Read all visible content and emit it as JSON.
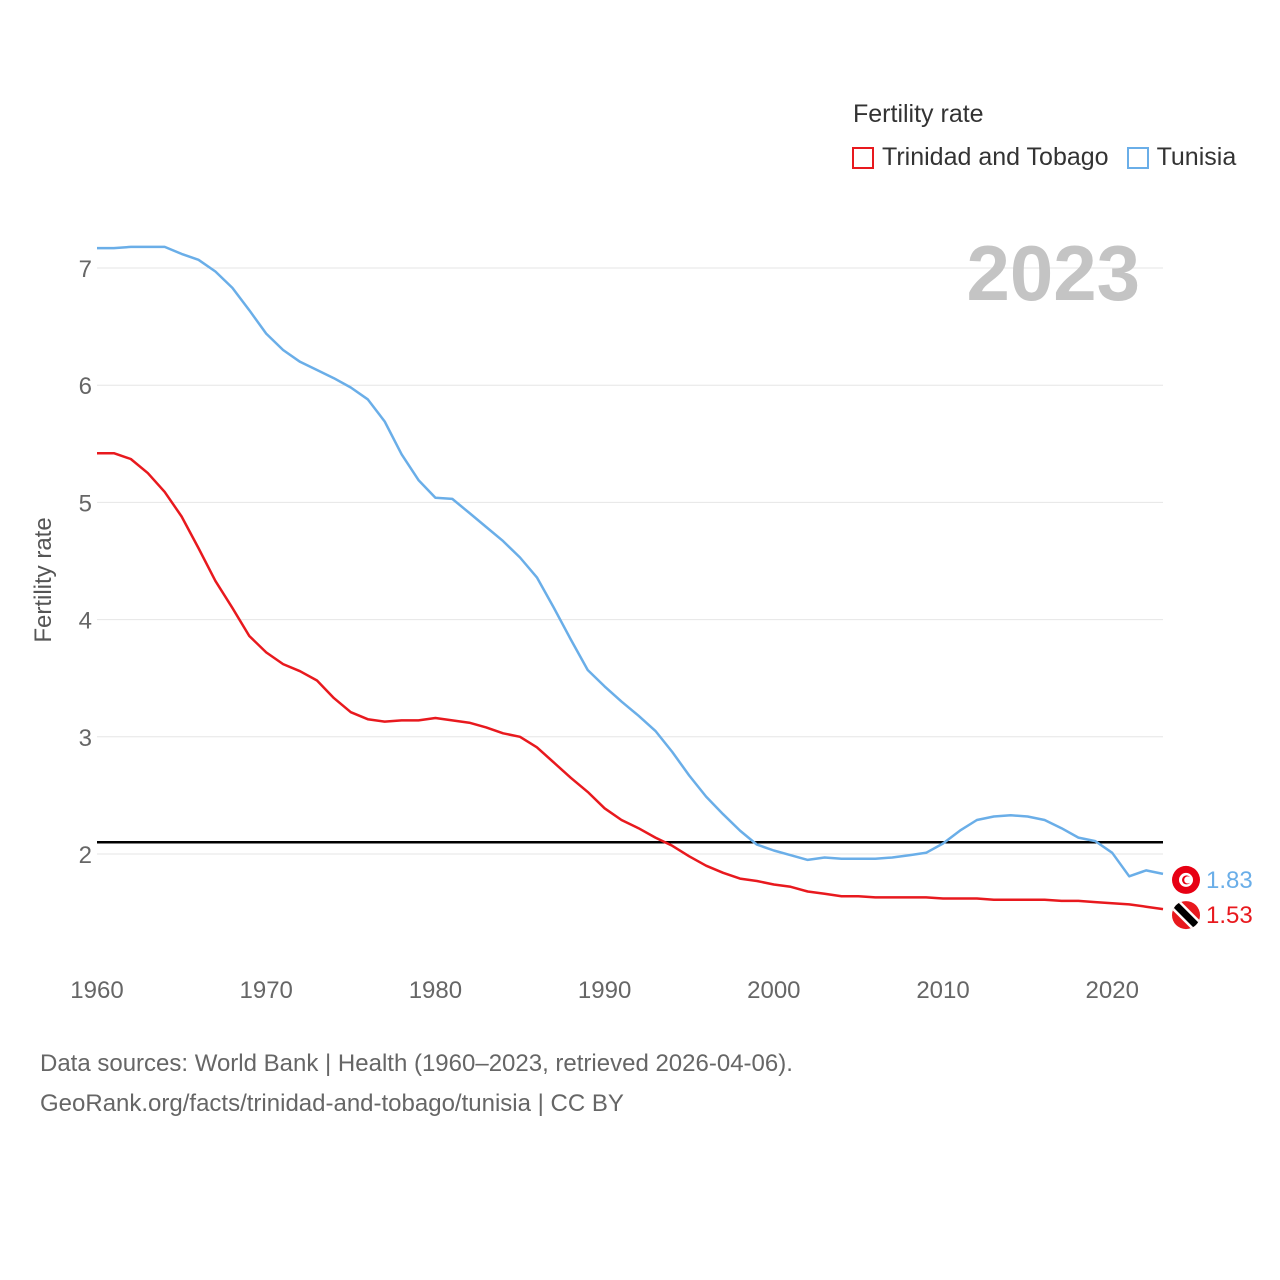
{
  "chart_data": {
    "type": "line",
    "year_label": "2023",
    "ylabel": "Fertility rate",
    "legend_title": "Fertility rate",
    "xlim": [
      1960,
      2023
    ],
    "ylim": [
      1.2,
      7.5
    ],
    "x_ticks": [
      "1960",
      "1970",
      "1980",
      "1990",
      "2000",
      "2010",
      "2020"
    ],
    "y_ticks": [
      "2",
      "3",
      "4",
      "5",
      "6",
      "7"
    ],
    "reference_line": 2.1,
    "reference_color": "#000000",
    "series": [
      {
        "name": "Trinidad and Tobago",
        "color": "#e8191e",
        "end_label": "1.53",
        "flag_icon": "trinidad-and-tobago-flag-icon",
        "x": [
          1960,
          1961,
          1962,
          1963,
          1964,
          1965,
          1966,
          1967,
          1968,
          1969,
          1970,
          1971,
          1972,
          1973,
          1974,
          1975,
          1976,
          1977,
          1978,
          1979,
          1980,
          1981,
          1982,
          1983,
          1984,
          1985,
          1986,
          1987,
          1988,
          1989,
          1990,
          1991,
          1992,
          1993,
          1994,
          1995,
          1996,
          1997,
          1998,
          1999,
          2000,
          2001,
          2002,
          2003,
          2004,
          2005,
          2006,
          2007,
          2008,
          2009,
          2010,
          2011,
          2012,
          2013,
          2014,
          2015,
          2016,
          2017,
          2018,
          2019,
          2020,
          2021,
          2022,
          2023
        ],
        "values": [
          5.42,
          5.42,
          5.37,
          5.25,
          5.09,
          4.88,
          4.61,
          4.33,
          4.1,
          3.86,
          3.72,
          3.62,
          3.56,
          3.48,
          3.33,
          3.21,
          3.15,
          3.13,
          3.14,
          3.14,
          3.16,
          3.14,
          3.12,
          3.08,
          3.03,
          3.0,
          2.91,
          2.78,
          2.65,
          2.53,
          2.39,
          2.29,
          2.22,
          2.14,
          2.07,
          1.98,
          1.9,
          1.84,
          1.79,
          1.77,
          1.74,
          1.72,
          1.68,
          1.66,
          1.64,
          1.64,
          1.63,
          1.63,
          1.63,
          1.63,
          1.62,
          1.62,
          1.62,
          1.61,
          1.61,
          1.61,
          1.61,
          1.6,
          1.6,
          1.59,
          1.58,
          1.57,
          1.55,
          1.53
        ]
      },
      {
        "name": "Tunisia",
        "color": "#6aaee8",
        "end_label": "1.83",
        "flag_icon": "tunisia-flag-icon",
        "x": [
          1960,
          1961,
          1962,
          1963,
          1964,
          1965,
          1966,
          1967,
          1968,
          1969,
          1970,
          1971,
          1972,
          1973,
          1974,
          1975,
          1976,
          1977,
          1978,
          1979,
          1980,
          1981,
          1982,
          1983,
          1984,
          1985,
          1986,
          1987,
          1988,
          1989,
          1990,
          1991,
          1992,
          1993,
          1994,
          1995,
          1996,
          1997,
          1998,
          1999,
          2000,
          2001,
          2002,
          2003,
          2004,
          2005,
          2006,
          2007,
          2008,
          2009,
          2010,
          2011,
          2012,
          2013,
          2014,
          2015,
          2016,
          2017,
          2018,
          2019,
          2020,
          2021,
          2022,
          2023
        ],
        "values": [
          7.17,
          7.17,
          7.18,
          7.18,
          7.18,
          7.12,
          7.07,
          6.97,
          6.83,
          6.64,
          6.44,
          6.3,
          6.2,
          6.13,
          6.06,
          5.98,
          5.88,
          5.69,
          5.41,
          5.19,
          5.04,
          5.03,
          4.91,
          4.79,
          4.67,
          4.53,
          4.36,
          4.1,
          3.83,
          3.57,
          3.43,
          3.3,
          3.18,
          3.05,
          2.87,
          2.67,
          2.49,
          2.34,
          2.2,
          2.08,
          2.03,
          1.99,
          1.95,
          1.97,
          1.96,
          1.96,
          1.96,
          1.97,
          1.99,
          2.01,
          2.09,
          2.2,
          2.29,
          2.32,
          2.33,
          2.32,
          2.29,
          2.22,
          2.14,
          2.11,
          2.01,
          1.81,
          1.86,
          1.83
        ]
      }
    ]
  },
  "footer": {
    "line1": "Data sources: World Bank | Health (1960–2023, retrieved 2026-04-06).",
    "line2": "GeoRank.org/facts/trinidad-and-tobago/tunisia | CC BY"
  }
}
